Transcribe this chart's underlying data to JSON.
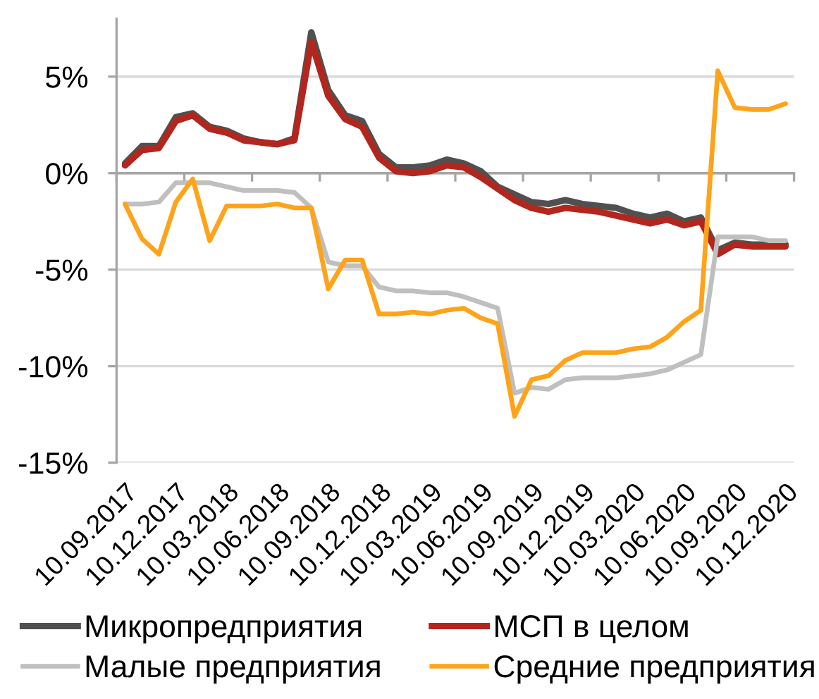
{
  "chart_data": {
    "type": "line",
    "categories": [
      "10.09.2017",
      null,
      null,
      "10.12.2017",
      null,
      null,
      "10.03.2018",
      null,
      null,
      "10.06.2018",
      null,
      null,
      "10.09.2018",
      null,
      null,
      "10.12.2018",
      null,
      null,
      "10.03.2019",
      null,
      null,
      "10.06.2019",
      null,
      null,
      "10.09.2019",
      null,
      null,
      "10.12.2019",
      null,
      null,
      "10.03.2020",
      null,
      null,
      "10.06.2020",
      null,
      null,
      "10.09.2020",
      null,
      null,
      "10.12.2020"
    ],
    "series": [
      {
        "name": "Микропредприятия",
        "color": "#505050",
        "values": [
          0.5,
          1.4,
          1.4,
          2.9,
          3.1,
          2.4,
          2.2,
          1.8,
          1.6,
          1.5,
          1.8,
          7.3,
          4.3,
          3.0,
          2.7,
          1.0,
          0.3,
          0.3,
          0.4,
          0.7,
          0.5,
          0.1,
          -0.7,
          -1.1,
          -1.5,
          -1.6,
          -1.4,
          -1.6,
          -1.7,
          -1.8,
          -2.1,
          -2.3,
          -2.1,
          -2.5,
          -2.3,
          -4.0,
          -3.6,
          -3.7,
          -3.7,
          -3.7
        ]
      },
      {
        "name": "МСП в целом",
        "color": "#b3261e",
        "values": [
          0.4,
          1.2,
          1.3,
          2.7,
          3.0,
          2.3,
          2.1,
          1.7,
          1.6,
          1.5,
          1.7,
          6.8,
          4.0,
          2.8,
          2.4,
          0.8,
          0.1,
          0.0,
          0.1,
          0.4,
          0.3,
          -0.2,
          -0.8,
          -1.4,
          -1.8,
          -2.0,
          -1.8,
          -1.9,
          -2.0,
          -2.2,
          -2.4,
          -2.6,
          -2.4,
          -2.7,
          -2.5,
          -4.2,
          -3.7,
          -3.8,
          -3.8,
          -3.8
        ]
      },
      {
        "name": "Малые предприятия",
        "color": "#bfbfbf",
        "values": [
          -1.6,
          -1.6,
          -1.5,
          -0.5,
          -0.5,
          -0.5,
          -0.7,
          -0.9,
          -0.9,
          -0.9,
          -1.0,
          -1.8,
          -4.6,
          -4.8,
          -4.8,
          -5.9,
          -6.1,
          -6.1,
          -6.2,
          -6.2,
          -6.4,
          -6.7,
          -7.0,
          -11.4,
          -11.1,
          -11.2,
          -10.7,
          -10.6,
          -10.6,
          -10.6,
          -10.5,
          -10.4,
          -10.2,
          -9.8,
          -9.4,
          -3.3,
          -3.3,
          -3.3,
          -3.5,
          -3.5
        ]
      },
      {
        "name": "Средние предприятия",
        "color": "#ffa31a",
        "values": [
          -1.6,
          -3.4,
          -4.2,
          -1.5,
          -0.3,
          -3.5,
          -1.7,
          -1.7,
          -1.7,
          -1.6,
          -1.8,
          -1.8,
          -6.0,
          -4.5,
          -4.5,
          -7.3,
          -7.3,
          -7.2,
          -7.3,
          -7.1,
          -7.0,
          -7.5,
          -7.8,
          -12.6,
          -10.7,
          -10.5,
          -9.7,
          -9.3,
          -9.3,
          -9.3,
          -9.1,
          -9.0,
          -8.5,
          -7.7,
          -7.1,
          5.3,
          3.4,
          3.3,
          3.3,
          3.6
        ]
      }
    ],
    "ylim": [
      -15,
      8
    ],
    "yticks": [
      {
        "value": -15,
        "label": "-15%"
      },
      {
        "value": -10,
        "label": "-10%"
      },
      {
        "value": -5,
        "label": "-5%"
      },
      {
        "value": 0,
        "label": "0%"
      },
      {
        "value": 5,
        "label": "5%"
      }
    ],
    "grid": "y",
    "legend": "bottom",
    "line_style": "solid"
  }
}
